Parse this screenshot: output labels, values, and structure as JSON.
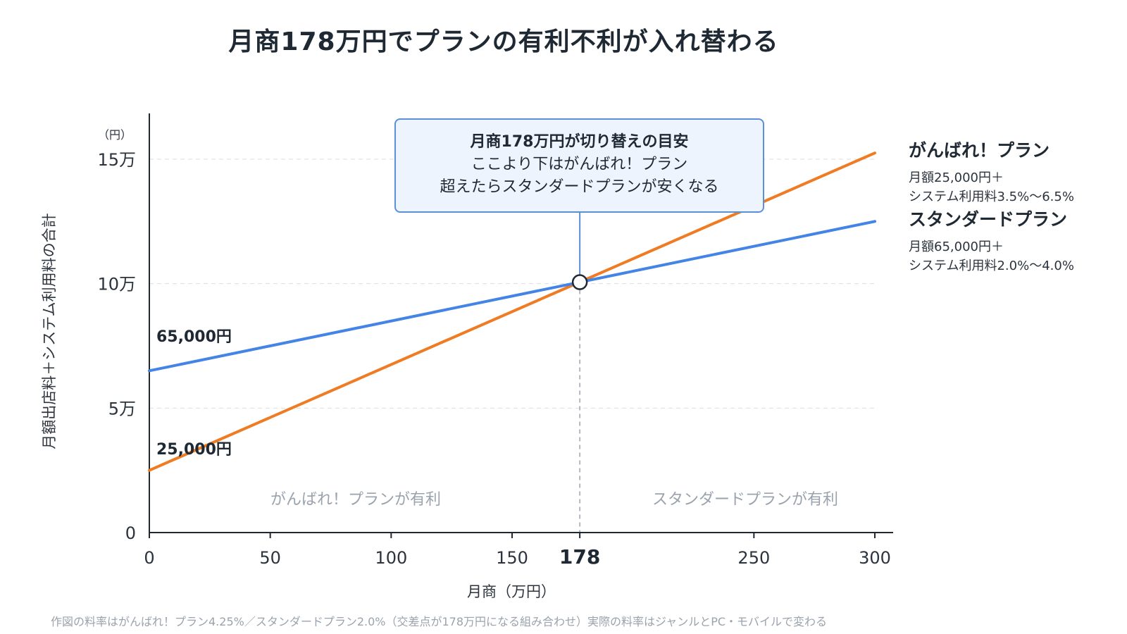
{
  "chart_data": {
    "type": "line",
    "title": "月商178万円でプランの有利不利が入れ替わる",
    "xlabel": "月商（万円）",
    "ylabel": "月額出店料＋システム利用料の合計",
    "y_unit": "（円）",
    "xlim": [
      0,
      300
    ],
    "ylim": [
      0,
      150000
    ],
    "x_ticks": [
      {
        "value": 0,
        "label": "0"
      },
      {
        "value": 50,
        "label": "50"
      },
      {
        "value": 100,
        "label": "100"
      },
      {
        "value": 150,
        "label": "150"
      },
      {
        "value": 178,
        "label": "178",
        "emphasis": true
      },
      {
        "value": 250,
        "label": "250"
      },
      {
        "value": 300,
        "label": "300"
      }
    ],
    "y_ticks": [
      {
        "value": 0,
        "label": "0"
      },
      {
        "value": 50000,
        "label": "5万"
      },
      {
        "value": 100000,
        "label": "10万"
      },
      {
        "value": 150000,
        "label": "15万"
      }
    ],
    "grid": "horizontal-dashed",
    "series": [
      {
        "name": "がんばれ！プラン",
        "description": [
          "月額25,000円＋",
          "システム利用料3.5%〜6.5%"
        ],
        "color": "#ef7b22",
        "x": [
          0,
          178,
          300
        ],
        "y": [
          25000,
          100650,
          152500
        ],
        "intercept_label": "25,000円"
      },
      {
        "name": "スタンダードプラン",
        "description": [
          "月額65,000円＋",
          "システム利用料2.0%〜4.0%"
        ],
        "color": "#4384e6",
        "x": [
          0,
          178,
          300
        ],
        "y": [
          65000,
          100600,
          125000
        ],
        "intercept_label": "65,000円"
      }
    ],
    "crossover": {
      "x": 178,
      "y": 100600,
      "callout": [
        "月商178万円が切り替えの目安",
        "ここより下はがんばれ！プラン",
        "超えたらスタンダードプランが安くなる"
      ]
    },
    "regions": {
      "left": "がんばれ！プランが有利",
      "right": "スタンダードプランが有利"
    },
    "legend_position": "right",
    "footnote": "作図の料率はがんばれ！プラン4.25%／スタンダードプラン2.0%（交差点が178万円になる組み合わせ）実際の料率はジャンルとPC・モバイルで変わる"
  },
  "colors": {
    "axis": "#1f2933",
    "grid": "#dddddd",
    "callout_border": "#5b8fd6",
    "callout_bg": "#eef4fd",
    "muted_text": "#9aa3ad"
  }
}
